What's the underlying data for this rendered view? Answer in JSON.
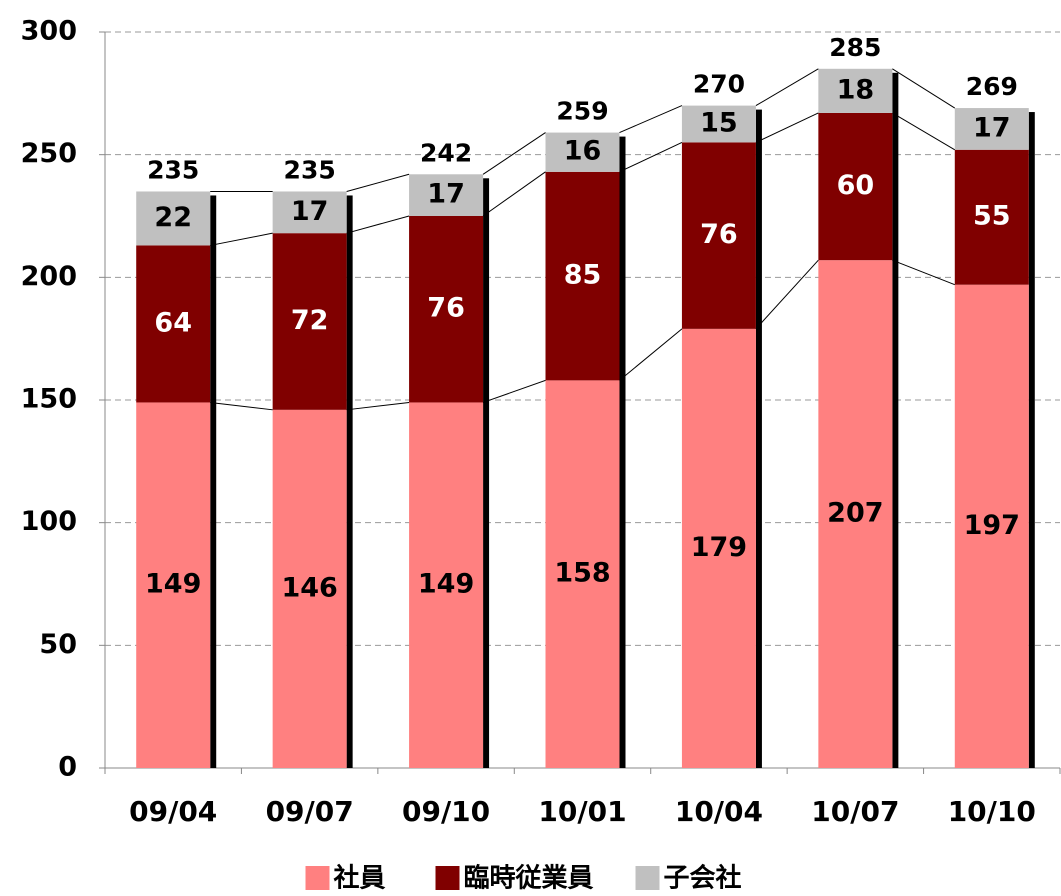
{
  "chart_data": {
    "type": "stacked_bar",
    "categories": [
      "09/04",
      "09/07",
      "09/10",
      "10/01",
      "10/04",
      "10/07",
      "10/10"
    ],
    "series": [
      {
        "name": "社員",
        "color": "#ff8080",
        "values": [
          149,
          146,
          149,
          158,
          179,
          207,
          197
        ]
      },
      {
        "name": "臨時従業員",
        "color": "#800000",
        "values": [
          64,
          72,
          76,
          85,
          76,
          60,
          55
        ]
      },
      {
        "name": "子会社",
        "color": "#c0c0c0",
        "values": [
          22,
          17,
          17,
          16,
          15,
          18,
          17
        ]
      }
    ],
    "totals": [
      235,
      235,
      242,
      259,
      270,
      285,
      269
    ],
    "ylim": [
      0,
      300
    ],
    "yticks": [
      0,
      50,
      100,
      150,
      200,
      250,
      300
    ],
    "grid": true,
    "legend": "bottom"
  }
}
